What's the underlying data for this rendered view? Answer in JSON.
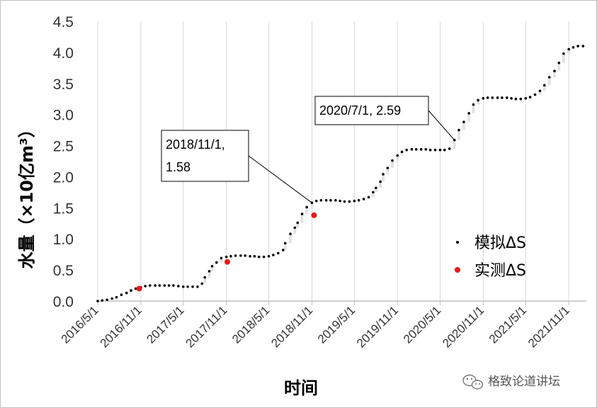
{
  "chart_data": {
    "type": "scatter",
    "xlabel": "时间",
    "ylabel": "水量（×10亿m³）",
    "ylim": [
      0,
      4.5
    ],
    "xlim": [
      "2016-05-01",
      "2022-01-15"
    ],
    "y_ticks": [
      "0.0",
      "0.5",
      "1.0",
      "1.5",
      "2.0",
      "2.5",
      "3.0",
      "3.5",
      "4.0",
      "4.5"
    ],
    "x_ticks": [
      "2016/5/1",
      "2016/11/1",
      "2017/5/1",
      "2017/11/1",
      "2018/5/1",
      "2018/11/1",
      "2019/5/1",
      "2019/11/1",
      "2020/5/1",
      "2020/11/1",
      "2021/5/1",
      "2021/11/1"
    ],
    "x_tick_dates": [
      "2016-05-01",
      "2016-11-01",
      "2017-05-01",
      "2017-11-01",
      "2018-05-01",
      "2018-11-01",
      "2019-05-01",
      "2019-11-01",
      "2020-05-01",
      "2020-11-01",
      "2021-05-01",
      "2021-11-01"
    ],
    "grid": "vertical",
    "legend_position": "right",
    "series": [
      {
        "name": "模拟ΔS",
        "color": "#000000",
        "marker": "small dot",
        "points": [
          [
            "2016-05-01",
            0.0
          ],
          [
            "2016-05-20",
            0.01
          ],
          [
            "2016-06-10",
            0.02
          ],
          [
            "2016-07-01",
            0.04
          ],
          [
            "2016-07-20",
            0.06
          ],
          [
            "2016-08-10",
            0.1
          ],
          [
            "2016-09-01",
            0.13
          ],
          [
            "2016-09-20",
            0.17
          ],
          [
            "2016-10-10",
            0.2
          ],
          [
            "2016-11-01",
            0.22
          ],
          [
            "2016-11-20",
            0.24
          ],
          [
            "2016-12-10",
            0.25
          ],
          [
            "2017-01-01",
            0.25
          ],
          [
            "2017-01-20",
            0.25
          ],
          [
            "2017-02-10",
            0.25
          ],
          [
            "2017-03-01",
            0.25
          ],
          [
            "2017-03-20",
            0.25
          ],
          [
            "2017-04-10",
            0.24
          ],
          [
            "2017-05-01",
            0.23
          ],
          [
            "2017-05-20",
            0.23
          ],
          [
            "2017-06-10",
            0.23
          ],
          [
            "2017-07-01",
            0.23
          ],
          [
            "2017-07-20",
            0.28
          ],
          [
            "2017-08-01",
            0.38
          ],
          [
            "2017-08-20",
            0.48
          ],
          [
            "2017-09-01",
            0.56
          ],
          [
            "2017-09-20",
            0.62
          ],
          [
            "2017-10-10",
            0.69
          ],
          [
            "2017-11-01",
            0.71
          ],
          [
            "2017-11-20",
            0.72
          ],
          [
            "2017-12-10",
            0.73
          ],
          [
            "2018-01-01",
            0.73
          ],
          [
            "2018-01-20",
            0.73
          ],
          [
            "2018-02-10",
            0.72
          ],
          [
            "2018-03-01",
            0.72
          ],
          [
            "2018-03-20",
            0.71
          ],
          [
            "2018-04-10",
            0.71
          ],
          [
            "2018-05-01",
            0.72
          ],
          [
            "2018-05-20",
            0.74
          ],
          [
            "2018-06-10",
            0.77
          ],
          [
            "2018-07-01",
            0.82
          ],
          [
            "2018-07-10",
            0.93
          ],
          [
            "2018-08-01",
            1.08
          ],
          [
            "2018-08-20",
            1.18
          ],
          [
            "2018-09-01",
            1.26
          ],
          [
            "2018-09-20",
            1.4
          ],
          [
            "2018-10-10",
            1.51
          ],
          [
            "2018-11-01",
            1.58
          ],
          [
            "2018-11-20",
            1.61
          ],
          [
            "2018-12-10",
            1.62
          ],
          [
            "2019-01-01",
            1.62
          ],
          [
            "2019-01-20",
            1.62
          ],
          [
            "2019-02-10",
            1.62
          ],
          [
            "2019-03-01",
            1.61
          ],
          [
            "2019-03-20",
            1.6
          ],
          [
            "2019-04-10",
            1.6
          ],
          [
            "2019-05-01",
            1.61
          ],
          [
            "2019-05-20",
            1.62
          ],
          [
            "2019-06-10",
            1.64
          ],
          [
            "2019-07-01",
            1.67
          ],
          [
            "2019-07-20",
            1.75
          ],
          [
            "2019-08-01",
            1.82
          ],
          [
            "2019-08-20",
            1.92
          ],
          [
            "2019-09-01",
            2.04
          ],
          [
            "2019-09-20",
            2.14
          ],
          [
            "2019-10-10",
            2.26
          ],
          [
            "2019-11-01",
            2.34
          ],
          [
            "2019-11-20",
            2.4
          ],
          [
            "2019-12-10",
            2.43
          ],
          [
            "2020-01-01",
            2.44
          ],
          [
            "2020-01-20",
            2.44
          ],
          [
            "2020-02-10",
            2.44
          ],
          [
            "2020-03-01",
            2.44
          ],
          [
            "2020-03-20",
            2.43
          ],
          [
            "2020-04-10",
            2.43
          ],
          [
            "2020-05-01",
            2.43
          ],
          [
            "2020-05-20",
            2.43
          ],
          [
            "2020-06-10",
            2.45
          ],
          [
            "2020-07-01",
            2.59
          ],
          [
            "2020-07-20",
            2.75
          ],
          [
            "2020-08-10",
            2.88
          ],
          [
            "2020-09-01",
            3.02
          ],
          [
            "2020-09-20",
            3.16
          ],
          [
            "2020-10-10",
            3.23
          ],
          [
            "2020-11-01",
            3.26
          ],
          [
            "2020-11-20",
            3.27
          ],
          [
            "2020-12-10",
            3.27
          ],
          [
            "2021-01-01",
            3.27
          ],
          [
            "2021-01-20",
            3.27
          ],
          [
            "2021-02-10",
            3.27
          ],
          [
            "2021-03-01",
            3.26
          ],
          [
            "2021-03-20",
            3.25
          ],
          [
            "2021-04-10",
            3.25
          ],
          [
            "2021-05-01",
            3.26
          ],
          [
            "2021-05-20",
            3.28
          ],
          [
            "2021-06-10",
            3.32
          ],
          [
            "2021-07-01",
            3.38
          ],
          [
            "2021-07-20",
            3.47
          ],
          [
            "2021-08-10",
            3.6
          ],
          [
            "2021-09-01",
            3.7
          ],
          [
            "2021-09-20",
            3.83
          ],
          [
            "2021-10-10",
            3.98
          ],
          [
            "2021-11-01",
            4.05
          ],
          [
            "2021-11-20",
            4.08
          ],
          [
            "2021-12-10",
            4.1
          ],
          [
            "2022-01-01",
            4.1
          ]
        ]
      },
      {
        "name": "实测ΔS",
        "color": "#e41a1c",
        "marker": "dot",
        "points": [
          [
            "2016-10-25",
            0.2
          ],
          [
            "2017-11-05",
            0.63
          ],
          [
            "2018-11-10",
            1.38
          ]
        ]
      }
    ],
    "annotations": [
      {
        "lines": [
          "2018/11/1,",
          "1.58"
        ],
        "point": [
          "2018-11-01",
          1.58
        ]
      },
      {
        "lines": [
          "2020/7/1, 2.59"
        ],
        "point": [
          "2020-07-01",
          2.59
        ]
      }
    ]
  },
  "watermark": {
    "icon": "wechat-icon",
    "text": "格致论道讲坛"
  }
}
